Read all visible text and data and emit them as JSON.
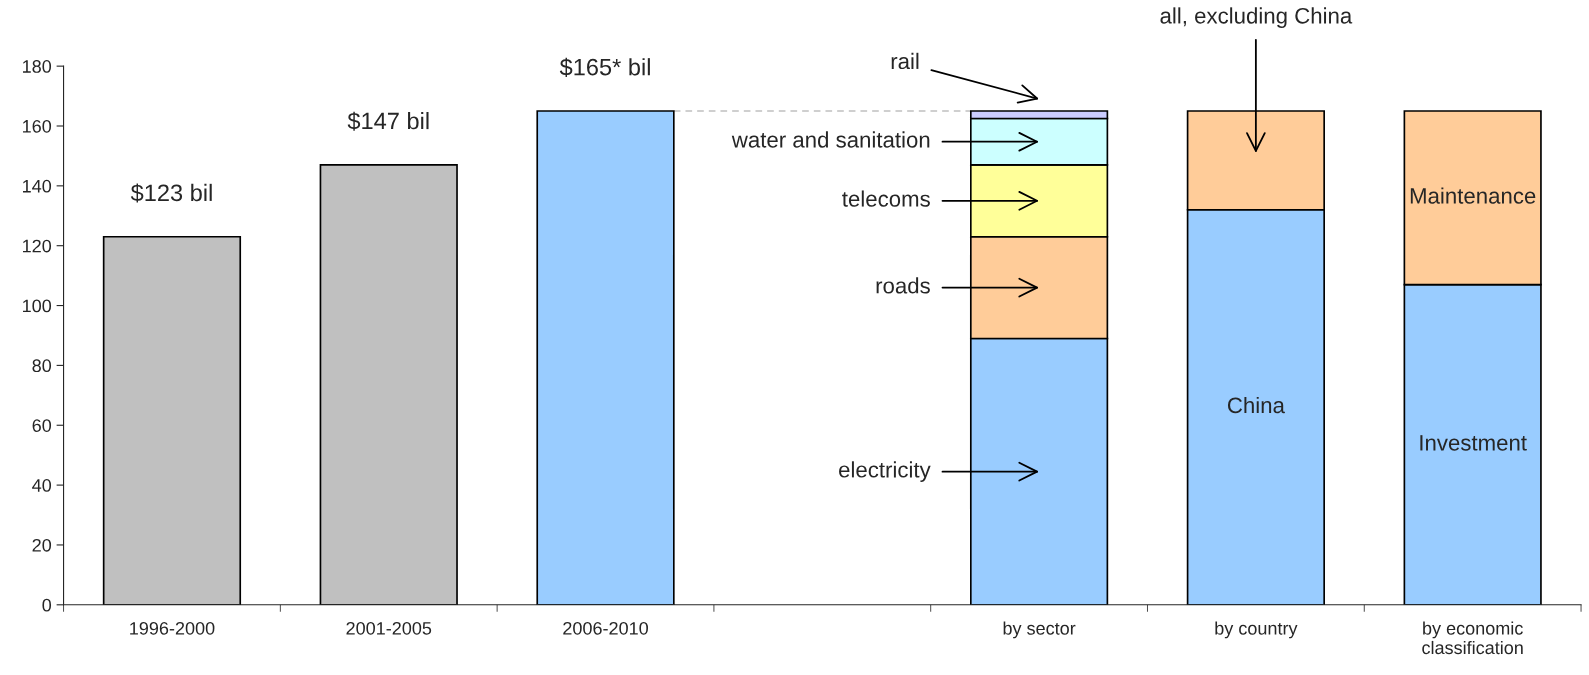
{
  "chart_data": {
    "type": "bar",
    "stacked": true,
    "categories": [
      "1996-2000",
      "2001-2005",
      "2006-2010",
      null,
      "by sector",
      "by country",
      "by economic\nclassification"
    ],
    "series": [
      {
        "values": [
          123,
          147,
          165,
          null,
          89,
          132,
          107
        ],
        "colors": [
          "#c0c0c0",
          "#c0c0c0",
          "#99ccff",
          null,
          "#99ccff",
          "#99ccff",
          "#99ccff"
        ],
        "value_labels": [
          "$123 bil",
          "$147 bil",
          "$165* bil",
          null,
          null,
          "China",
          "Investment"
        ]
      },
      {
        "values": [
          null,
          null,
          null,
          null,
          34,
          33,
          58
        ],
        "color": "#ffcc99",
        "value_labels": [
          null,
          null,
          null,
          null,
          null,
          null,
          "Maintenance"
        ]
      },
      {
        "values": [
          null,
          null,
          null,
          null,
          24,
          null,
          null
        ],
        "color": "#ffff99"
      },
      {
        "values": [
          null,
          null,
          null,
          null,
          15.5,
          null,
          null
        ],
        "color": "#ccffff"
      },
      {
        "values": [
          null,
          null,
          null,
          null,
          2.5,
          null,
          null
        ],
        "color": "#ccccff"
      }
    ],
    "ylim": [
      0,
      180
    ],
    "yticks": [
      0,
      20,
      40,
      60,
      80,
      100,
      120,
      140,
      160,
      180
    ],
    "ref_lines": [
      {
        "axis": "y",
        "value": 165,
        "color": "#c0c0c0",
        "line_style": "dashed"
      }
    ],
    "annotations": [
      "electricity",
      "roads",
      "telecoms",
      "water and sanitation",
      "rail",
      "all, excluding China"
    ],
    "grid": false
  }
}
